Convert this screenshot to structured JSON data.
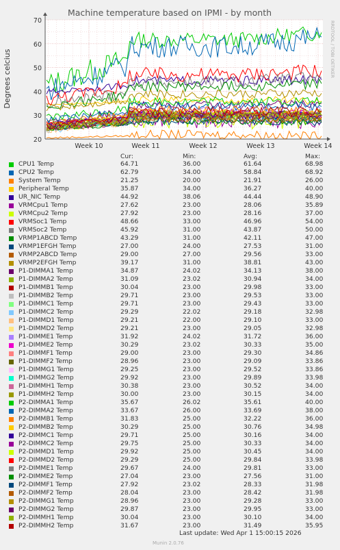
{
  "chart_data": {
    "type": "line",
    "title": "Machine temperature based on IPMI - by month",
    "ylabel": "Degrees celcius",
    "watermark": "RRDTOOL / TOBI OETIKER",
    "ylim": [
      20,
      70
    ],
    "yticks": [
      20,
      30,
      40,
      50,
      60,
      70
    ],
    "xticks": [
      "Week 10",
      "Week 11",
      "Week 12",
      "Week 13",
      "Week 14"
    ],
    "grid": true,
    "columns": [
      "Cur:",
      "Min:",
      "Avg:",
      "Max:"
    ],
    "series": [
      {
        "name": "CPU1 Temp",
        "color": "#00cc00",
        "cur": "64.71",
        "min": "36.00",
        "avg": "61.64",
        "max": "68.98"
      },
      {
        "name": "CPU2 Temp",
        "color": "#0066b3",
        "cur": "62.79",
        "min": "34.00",
        "avg": "58.84",
        "max": "68.92"
      },
      {
        "name": "System Temp",
        "color": "#ff8000",
        "cur": "21.25",
        "min": "20.00",
        "avg": "21.91",
        "max": "26.00"
      },
      {
        "name": "Peripheral Temp",
        "color": "#ffcc00",
        "cur": "35.87",
        "min": "34.00",
        "avg": "36.27",
        "max": "40.00"
      },
      {
        "name": "UR_NIC Temp",
        "color": "#330099",
        "cur": "44.92",
        "min": "38.06",
        "avg": "44.44",
        "max": "48.90"
      },
      {
        "name": "VRMCpu1 Temp",
        "color": "#990099",
        "cur": "27.62",
        "min": "23.00",
        "avg": "28.06",
        "max": "35.89"
      },
      {
        "name": "VRMCpu2 Temp",
        "color": "#ccff00",
        "cur": "27.92",
        "min": "23.00",
        "avg": "28.16",
        "max": "37.00"
      },
      {
        "name": "VRMSoc1 Temp",
        "color": "#ff0000",
        "cur": "48.66",
        "min": "33.00",
        "avg": "46.96",
        "max": "54.00"
      },
      {
        "name": "VRMSoc2 Temp",
        "color": "#808080",
        "cur": "45.92",
        "min": "31.00",
        "avg": "43.87",
        "max": "50.00"
      },
      {
        "name": "VRMP1ABCD Temp",
        "color": "#008f00",
        "cur": "43.29",
        "min": "31.00",
        "avg": "42.11",
        "max": "47.00"
      },
      {
        "name": "VRMP1EFGH Temp",
        "color": "#00487d",
        "cur": "27.00",
        "min": "24.00",
        "avg": "27.53",
        "max": "31.00"
      },
      {
        "name": "VRMP2ABCD Temp",
        "color": "#b35a00",
        "cur": "29.00",
        "min": "27.00",
        "avg": "29.56",
        "max": "33.00"
      },
      {
        "name": "VRMP2EFGH Temp",
        "color": "#b38f00",
        "cur": "39.17",
        "min": "31.00",
        "avg": "38.81",
        "max": "43.00"
      },
      {
        "name": "P1-DIMMA1 Temp",
        "color": "#6b006b",
        "cur": "34.87",
        "min": "24.02",
        "avg": "34.13",
        "max": "38.00"
      },
      {
        "name": "P1-DIMMA2 Temp",
        "color": "#8fb300",
        "cur": "31.09",
        "min": "23.02",
        "avg": "30.94",
        "max": "34.00"
      },
      {
        "name": "P1-DIMMB1 Temp",
        "color": "#b30000",
        "cur": "30.04",
        "min": "23.00",
        "avg": "29.98",
        "max": "33.00"
      },
      {
        "name": "P1-DIMMB2 Temp",
        "color": "#bebebe",
        "cur": "29.71",
        "min": "23.00",
        "avg": "29.53",
        "max": "33.00"
      },
      {
        "name": "P1-DIMMC1 Temp",
        "color": "#80ff80",
        "cur": "29.71",
        "min": "23.00",
        "avg": "29.43",
        "max": "33.00"
      },
      {
        "name": "P1-DIMMC2 Temp",
        "color": "#80c9ff",
        "cur": "29.29",
        "min": "22.02",
        "avg": "29.18",
        "max": "32.98"
      },
      {
        "name": "P1-DIMMD1 Temp",
        "color": "#ffc080",
        "cur": "29.21",
        "min": "22.00",
        "avg": "29.10",
        "max": "33.00"
      },
      {
        "name": "P1-DIMMD2 Temp",
        "color": "#ffe680",
        "cur": "29.21",
        "min": "23.00",
        "avg": "29.05",
        "max": "32.98"
      },
      {
        "name": "P1-DIMME1 Temp",
        "color": "#aa80ff",
        "cur": "31.92",
        "min": "24.02",
        "avg": "31.72",
        "max": "36.00"
      },
      {
        "name": "P1-DIMME2 Temp",
        "color": "#ee00cc",
        "cur": "30.29",
        "min": "23.02",
        "avg": "30.33",
        "max": "35.00"
      },
      {
        "name": "P1-DIMMF1 Temp",
        "color": "#ff8080",
        "cur": "29.00",
        "min": "23.00",
        "avg": "29.30",
        "max": "34.86"
      },
      {
        "name": "P1-DIMMF2 Temp",
        "color": "#666600",
        "cur": "28.96",
        "min": "23.00",
        "avg": "29.09",
        "max": "33.86"
      },
      {
        "name": "P1-DIMMG1 Temp",
        "color": "#ffbfff",
        "cur": "29.25",
        "min": "23.00",
        "avg": "29.52",
        "max": "33.86"
      },
      {
        "name": "P1-DIMMG2 Temp",
        "color": "#00ffcc",
        "cur": "29.92",
        "min": "23.00",
        "avg": "29.89",
        "max": "33.98"
      },
      {
        "name": "P1-DIMMH1 Temp",
        "color": "#cc6699",
        "cur": "30.38",
        "min": "23.00",
        "avg": "30.52",
        "max": "34.00"
      },
      {
        "name": "P1-DIMMH2 Temp",
        "color": "#999900",
        "cur": "30.00",
        "min": "23.00",
        "avg": "30.15",
        "max": "34.00"
      },
      {
        "name": "P2-DIMMA1 Temp",
        "color": "#00cc00",
        "cur": "35.67",
        "min": "26.02",
        "avg": "35.61",
        "max": "40.00"
      },
      {
        "name": "P2-DIMMA2 Temp",
        "color": "#0066b3",
        "cur": "33.67",
        "min": "26.00",
        "avg": "33.69",
        "max": "38.00"
      },
      {
        "name": "P2-DIMMB1 Temp",
        "color": "#ff8000",
        "cur": "31.83",
        "min": "25.00",
        "avg": "32.22",
        "max": "36.00"
      },
      {
        "name": "P2-DIMMB2 Temp",
        "color": "#ffcc00",
        "cur": "30.29",
        "min": "25.00",
        "avg": "30.76",
        "max": "34.98"
      },
      {
        "name": "P2-DIMMC1 Temp",
        "color": "#330099",
        "cur": "29.71",
        "min": "25.00",
        "avg": "30.16",
        "max": "34.00"
      },
      {
        "name": "P2-DIMMC2 Temp",
        "color": "#990099",
        "cur": "29.75",
        "min": "25.00",
        "avg": "30.33",
        "max": "34.00"
      },
      {
        "name": "P2-DIMMD1 Temp",
        "color": "#ccff00",
        "cur": "29.92",
        "min": "25.00",
        "avg": "30.45",
        "max": "34.00"
      },
      {
        "name": "P2-DIMMD2 Temp",
        "color": "#ff0000",
        "cur": "29.29",
        "min": "25.00",
        "avg": "29.84",
        "max": "33.98"
      },
      {
        "name": "P2-DIMME1 Temp",
        "color": "#808080",
        "cur": "29.67",
        "min": "24.00",
        "avg": "29.81",
        "max": "33.00"
      },
      {
        "name": "P2-DIMME2 Temp",
        "color": "#008f00",
        "cur": "27.04",
        "min": "23.00",
        "avg": "27.56",
        "max": "31.00"
      },
      {
        "name": "P2-DIMMF1 Temp",
        "color": "#00487d",
        "cur": "27.92",
        "min": "23.02",
        "avg": "28.33",
        "max": "31.98"
      },
      {
        "name": "P2-DIMMF2 Temp",
        "color": "#b35a00",
        "cur": "28.04",
        "min": "23.00",
        "avg": "28.42",
        "max": "31.98"
      },
      {
        "name": "P2-DIMMG1 Temp",
        "color": "#b38f00",
        "cur": "28.96",
        "min": "23.00",
        "avg": "29.28",
        "max": "33.00"
      },
      {
        "name": "P2-DIMMG2 Temp",
        "color": "#6b006b",
        "cur": "29.87",
        "min": "23.00",
        "avg": "29.95",
        "max": "33.00"
      },
      {
        "name": "P2-DIMMH1 Temp",
        "color": "#8fb300",
        "cur": "30.04",
        "min": "23.00",
        "avg": "30.10",
        "max": "34.00"
      },
      {
        "name": "P2-DIMMH2 Temp",
        "color": "#b30000",
        "cur": "31.67",
        "min": "23.00",
        "avg": "31.49",
        "max": "35.95"
      }
    ]
  },
  "footer": {
    "last_update": "Last update: Wed Apr  1 15:00:15 2026",
    "version": "Munin 2.0.76"
  }
}
